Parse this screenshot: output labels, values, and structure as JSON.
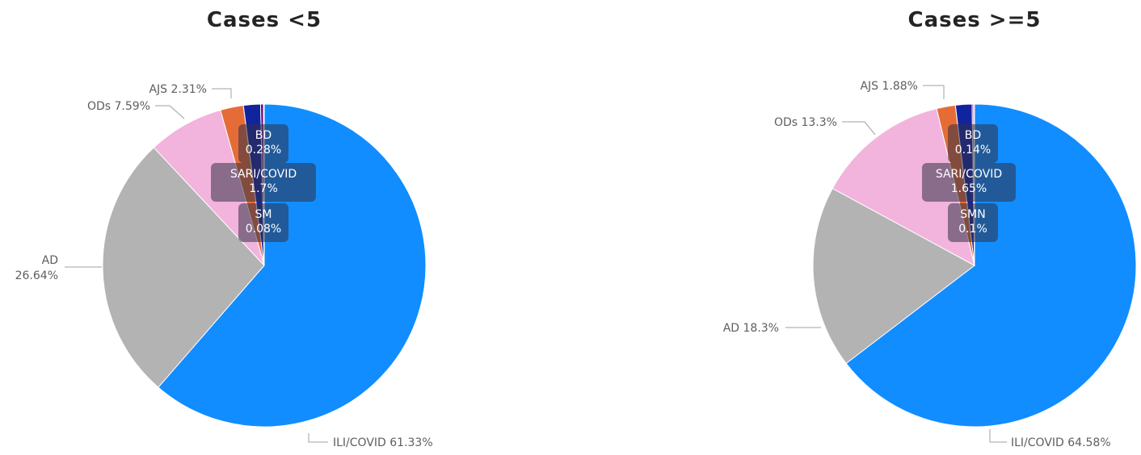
{
  "chart_data": [
    {
      "type": "pie",
      "title": "Cases <5",
      "slices": [
        {
          "name": "ILI/COVID",
          "value": 61.33,
          "color": "#118DFF",
          "label": [
            "ILI/COVID 61.33%"
          ]
        },
        {
          "name": "AD",
          "value": 26.64,
          "color": "#B3B3B3",
          "label": [
            "AD",
            "26.64%"
          ]
        },
        {
          "name": "ODs",
          "value": 7.59,
          "color": "#F2B3DC",
          "label": [
            "ODs 7.59%"
          ]
        },
        {
          "name": "AJS",
          "value": 2.31,
          "color": "#E66C37",
          "label": [
            "AJS 2.31%"
          ]
        },
        {
          "name": "SARI/COVID",
          "value": 1.7,
          "color": "#12239E",
          "label": [
            "SARI/COVID",
            "1.7%"
          ]
        },
        {
          "name": "BD",
          "value": 0.28,
          "color": "#6B007B",
          "label": [
            "BD",
            "0.28%"
          ]
        },
        {
          "name": "SM",
          "value": 0.08,
          "color": "#D9B300",
          "label": [
            "SM",
            "0.08%"
          ]
        }
      ]
    },
    {
      "type": "pie",
      "title": "Cases >=5",
      "slices": [
        {
          "name": "ILI/COVID",
          "value": 64.58,
          "color": "#118DFF",
          "label": [
            "ILI/COVID 64.58%"
          ]
        },
        {
          "name": "AD",
          "value": 18.3,
          "color": "#B3B3B3",
          "label": [
            "AD 18.3%"
          ]
        },
        {
          "name": "ODs",
          "value": 13.3,
          "color": "#F2B3DC",
          "label": [
            "ODs 13.3%"
          ]
        },
        {
          "name": "AJS",
          "value": 1.88,
          "color": "#E66C37",
          "label": [
            "AJS 1.88%"
          ]
        },
        {
          "name": "SARI/COVID",
          "value": 1.65,
          "color": "#12239E",
          "label": [
            "SARI/COVID",
            "1.65%"
          ]
        },
        {
          "name": "BD",
          "value": 0.14,
          "color": "#6B007B",
          "label": [
            "BD",
            "0.14%"
          ]
        },
        {
          "name": "SMN",
          "value": 0.1,
          "color": "#E044A7",
          "label": [
            "SMN",
            "0.1%"
          ]
        }
      ]
    }
  ]
}
